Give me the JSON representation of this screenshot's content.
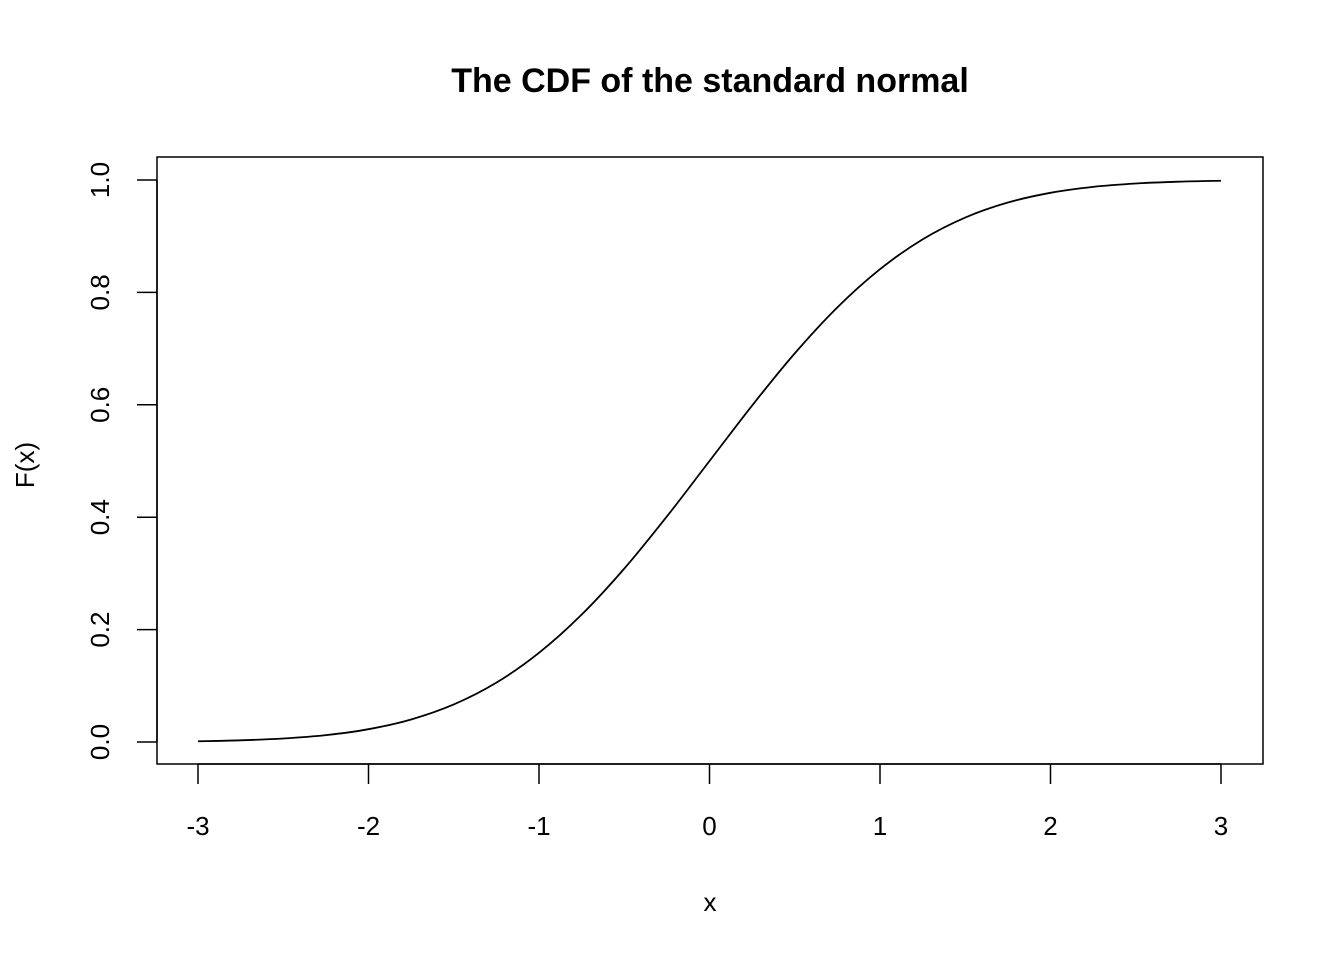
{
  "chart_data": {
    "type": "line",
    "title": "The CDF of the standard normal",
    "xlabel": "x",
    "ylabel": "F(x)",
    "xlim": [
      -3,
      3
    ],
    "ylim": [
      0,
      1
    ],
    "xticks": [
      "-3",
      "-2",
      "-1",
      "0",
      "1",
      "2",
      "3"
    ],
    "yticks": [
      "0.0",
      "0.2",
      "0.4",
      "0.6",
      "0.8",
      "1.0"
    ],
    "grid": false,
    "line_color": "#000000",
    "series": [
      {
        "x": [
          -3,
          -2.75,
          -2.5,
          -2.25,
          -2,
          -1.75,
          -1.5,
          -1.25,
          -1,
          -0.75,
          -0.5,
          -0.25,
          0,
          0.25,
          0.5,
          0.75,
          1,
          1.25,
          1.5,
          1.75,
          2,
          2.25,
          2.5,
          2.75,
          3
        ],
        "y": [
          0.0013,
          0.003,
          0.0062,
          0.0122,
          0.0228,
          0.0401,
          0.0668,
          0.1056,
          0.1587,
          0.2266,
          0.3085,
          0.4013,
          0.5,
          0.5987,
          0.6915,
          0.7734,
          0.8413,
          0.8944,
          0.9332,
          0.9599,
          0.9772,
          0.9878,
          0.9938,
          0.997,
          0.9987
        ]
      }
    ]
  }
}
